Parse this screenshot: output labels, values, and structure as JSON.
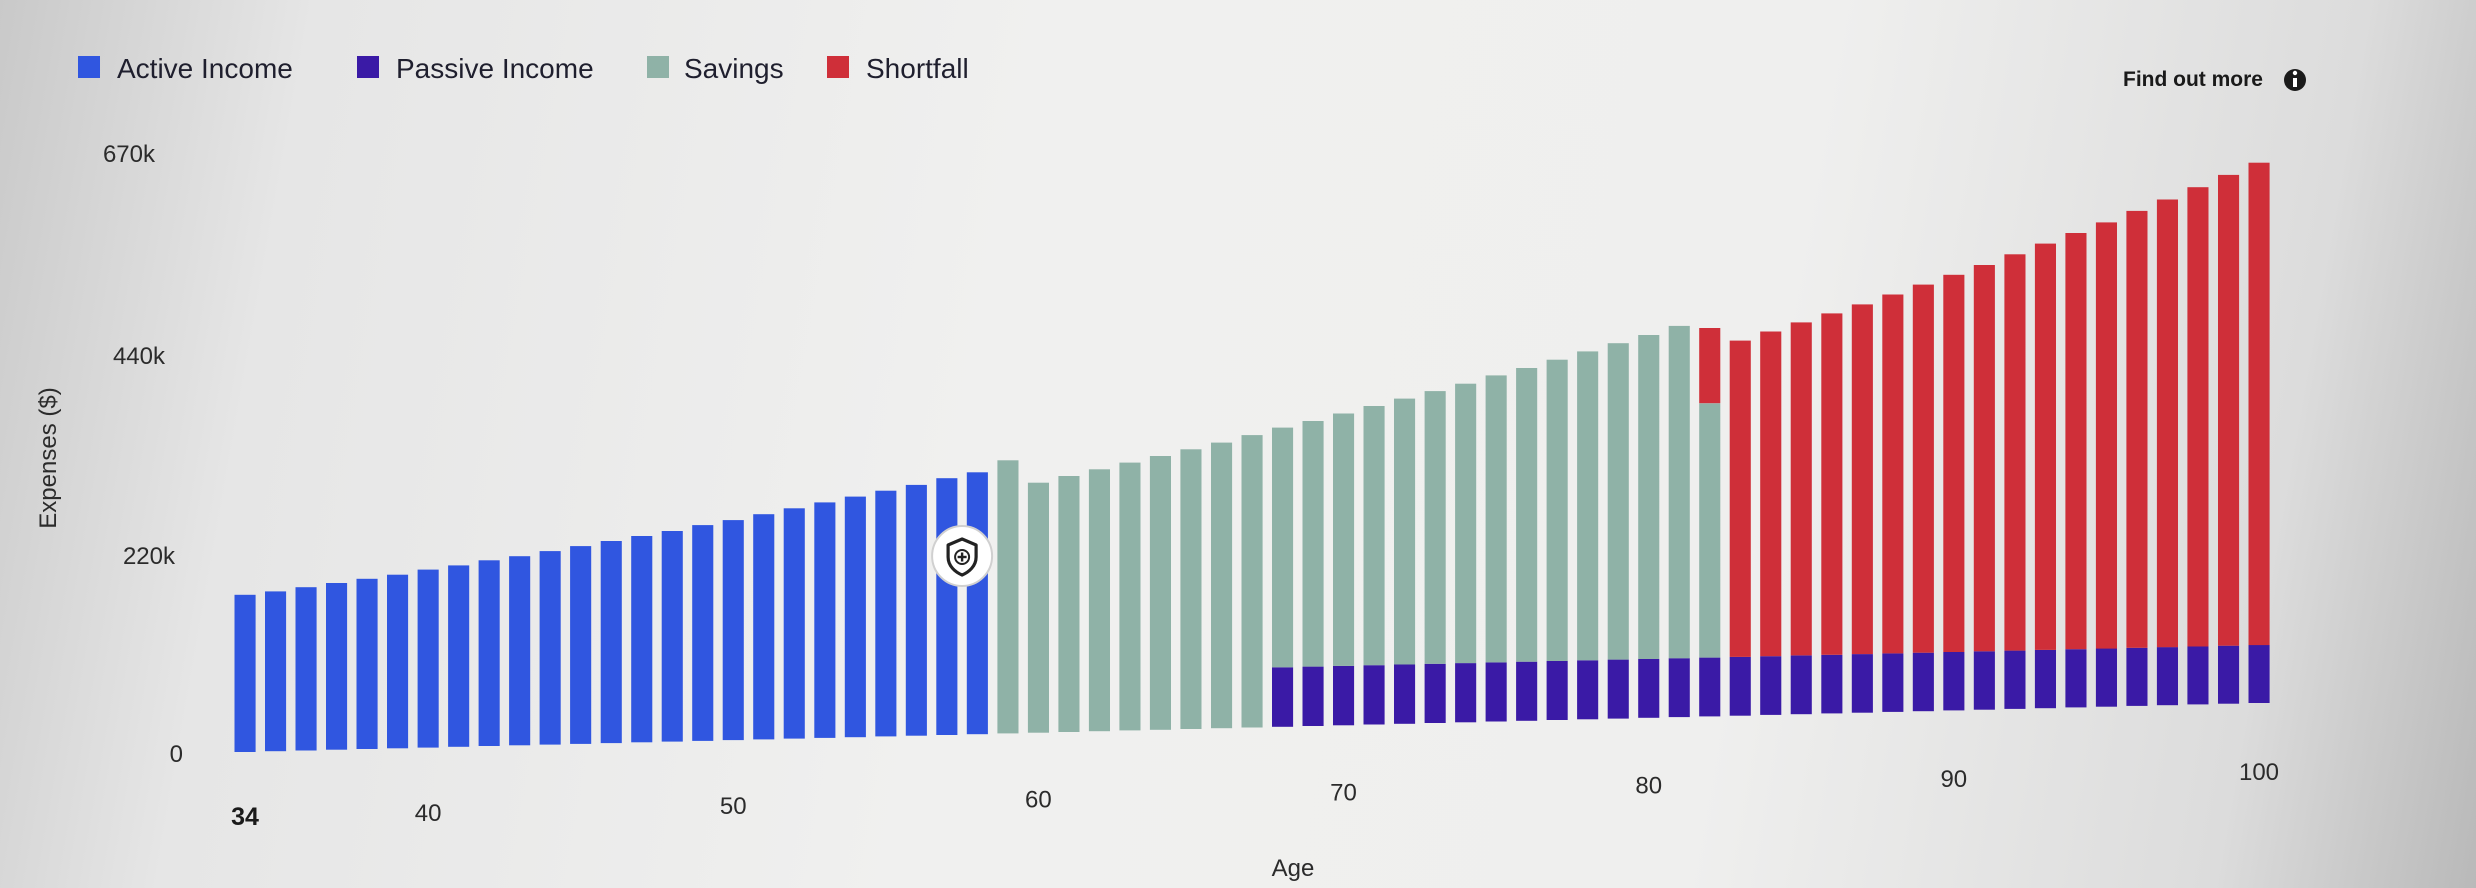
{
  "legend": [
    {
      "label": "Active Income",
      "color": "#3056e0"
    },
    {
      "label": "Passive Income",
      "color": "#3a1aa6"
    },
    {
      "label": "Savings",
      "color": "#8fb2a7"
    },
    {
      "label": "Shortfall",
      "color": "#cf2f39"
    }
  ],
  "find_out_more": {
    "label": "Find out more",
    "icon": "info-icon"
  },
  "marker": {
    "icon": "shield-plus-icon",
    "age": 58
  },
  "chart_data": {
    "type": "bar",
    "stacked": true,
    "xlabel": "Age",
    "ylabel": "Expenses ($)",
    "ylim": [
      0,
      670000
    ],
    "yticks": [
      {
        "value": 0,
        "label": "0"
      },
      {
        "value": 220000,
        "label": "220k"
      },
      {
        "value": 440000,
        "label": "440k"
      },
      {
        "value": 670000,
        "label": "670k"
      }
    ],
    "xticks": [
      {
        "age": 34,
        "label": "34",
        "bold": true
      },
      {
        "age": 40,
        "label": "40"
      },
      {
        "age": 50,
        "label": "50"
      },
      {
        "age": 60,
        "label": "60"
      },
      {
        "age": 70,
        "label": "70"
      },
      {
        "age": 80,
        "label": "80"
      },
      {
        "age": 90,
        "label": "90"
      },
      {
        "age": 100,
        "label": "100"
      }
    ],
    "ages": [
      34,
      35,
      36,
      37,
      38,
      39,
      40,
      41,
      42,
      43,
      44,
      45,
      46,
      47,
      48,
      49,
      50,
      51,
      52,
      53,
      54,
      55,
      56,
      57,
      58,
      59,
      60,
      61,
      62,
      63,
      64,
      65,
      66,
      67,
      68,
      69,
      70,
      71,
      72,
      73,
      74,
      75,
      76,
      77,
      78,
      79,
      80,
      81,
      82,
      83,
      84,
      85,
      86,
      87,
      88,
      89,
      90,
      91,
      92,
      93,
      94,
      95,
      96,
      97,
      98,
      99,
      100
    ],
    "series": [
      {
        "name": "Active Income",
        "color": "#3056e0",
        "values": [
          175000,
          178000,
          182000,
          186000,
          190000,
          194000,
          199000,
          203000,
          208000,
          212000,
          217000,
          222000,
          227000,
          232000,
          237000,
          243000,
          248000,
          254000,
          260000,
          266000,
          272000,
          278000,
          284000,
          291000,
          297000,
          0,
          0,
          0,
          0,
          0,
          0,
          0,
          0,
          0,
          0,
          0,
          0,
          0,
          0,
          0,
          0,
          0,
          0,
          0,
          0,
          0,
          0,
          0,
          0,
          0,
          0,
          0,
          0,
          0,
          0,
          0,
          0,
          0,
          0,
          0,
          0,
          0,
          0,
          0,
          0,
          0,
          0
        ]
      },
      {
        "name": "Passive Income",
        "color": "#3a1aa6",
        "values": [
          0,
          0,
          0,
          0,
          0,
          0,
          0,
          0,
          0,
          0,
          0,
          0,
          0,
          0,
          0,
          0,
          0,
          0,
          0,
          0,
          0,
          0,
          0,
          0,
          0,
          0,
          0,
          0,
          0,
          0,
          0,
          0,
          0,
          0,
          68000,
          68000,
          68000,
          68000,
          68000,
          68000,
          68000,
          68000,
          68000,
          68000,
          68000,
          68000,
          68000,
          68000,
          68000,
          68000,
          68000,
          68000,
          68000,
          68000,
          68000,
          68000,
          68000,
          68000,
          68000,
          68000,
          68000,
          68000,
          68000,
          68000,
          68000,
          68000,
          68000
        ]
      },
      {
        "name": "Savings",
        "color": "#8fb2a7",
        "values": [
          0,
          0,
          0,
          0,
          0,
          0,
          0,
          0,
          0,
          0,
          0,
          0,
          0,
          0,
          0,
          0,
          0,
          0,
          0,
          0,
          0,
          0,
          0,
          0,
          0,
          310000,
          284000,
          291000,
          298000,
          305000,
          312000,
          319000,
          326000,
          334000,
          274000,
          281000,
          289000,
          297000,
          305000,
          313000,
          321000,
          330000,
          338000,
          347000,
          356000,
          365000,
          374000,
          384000,
          294000,
          0,
          0,
          0,
          0,
          0,
          0,
          0,
          0,
          0,
          0,
          0,
          0,
          0,
          0,
          0,
          0,
          0,
          0
        ]
      },
      {
        "name": "Shortfall",
        "color": "#cf2f39",
        "values": [
          0,
          0,
          0,
          0,
          0,
          0,
          0,
          0,
          0,
          0,
          0,
          0,
          0,
          0,
          0,
          0,
          0,
          0,
          0,
          0,
          0,
          0,
          0,
          0,
          0,
          0,
          0,
          0,
          0,
          0,
          0,
          0,
          0,
          0,
          0,
          0,
          0,
          0,
          0,
          0,
          0,
          0,
          0,
          0,
          0,
          0,
          0,
          0,
          87000,
          366000,
          376000,
          386000,
          396000,
          406000,
          417000,
          428000,
          439000,
          450000,
          462000,
          474000,
          486000,
          498000,
          511000,
          524000,
          538000,
          552000,
          566000
        ]
      }
    ]
  }
}
